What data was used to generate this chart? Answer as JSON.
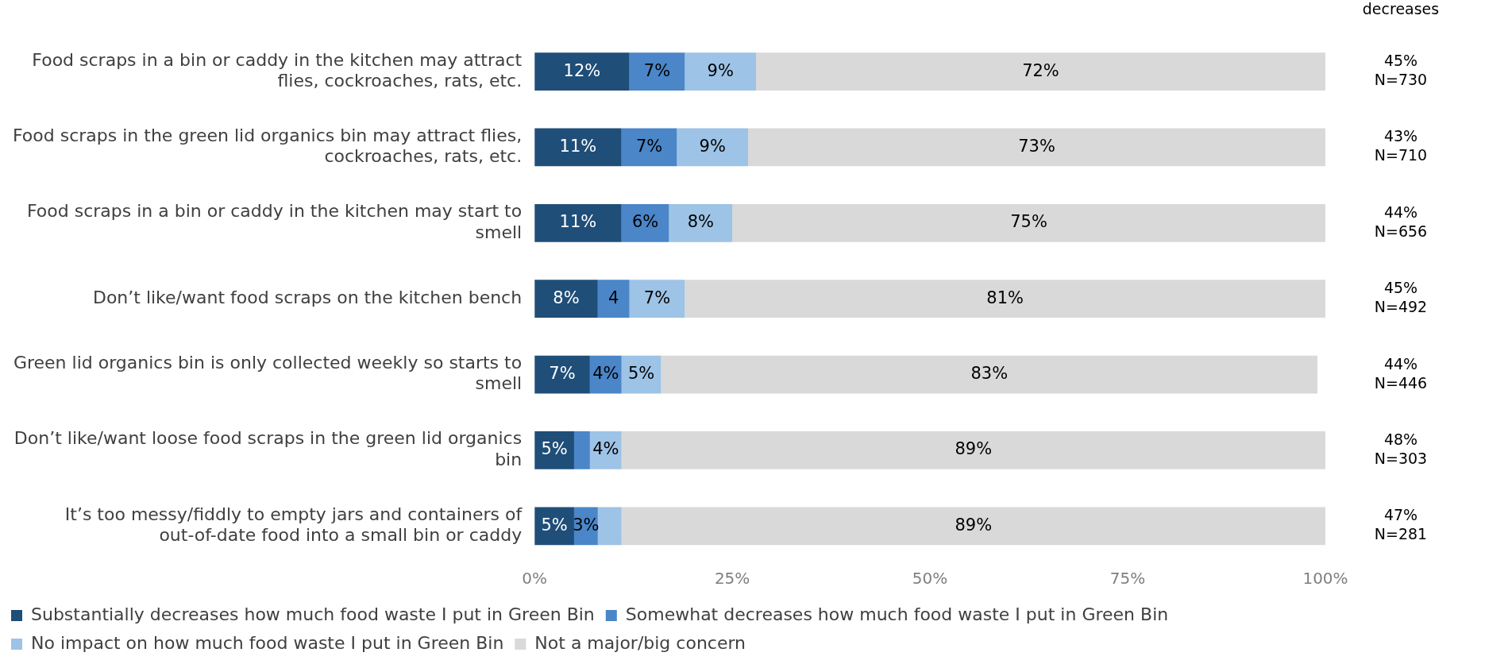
{
  "chart_data": {
    "type": "bar",
    "orientation": "horizontal",
    "stacked": true,
    "categories": [
      "Food scraps in a bin or caddy in the kitchen may attract flies, cockroaches, rats, etc.",
      "Food scraps in the green lid organics bin may attract flies, cockroaches, rats, etc.",
      "Food scraps in a bin or caddy in the kitchen may start to smell",
      "Don’t like/want food scraps on the kitchen bench",
      "Green lid organics bin is only collected weekly so starts to smell",
      "Don’t like/want loose food scraps in the green lid organics bin",
      "It’s too messy/fiddly to empty jars and containers of out-of-date food into a small bin or caddy"
    ],
    "series": [
      {
        "name": "Substantially decreases how much food waste I put in Green Bin",
        "color": "#1f4e79",
        "values": [
          12,
          11,
          11,
          8,
          7,
          5,
          5
        ],
        "value_labels": [
          "12%",
          "11%",
          "11%",
          "8%",
          "7%",
          "5%",
          "5%"
        ]
      },
      {
        "name": "Somewhat decreases how much food waste I put in Green Bin",
        "color": "#4a86c8",
        "values": [
          7,
          7,
          6,
          4,
          4,
          2,
          3
        ],
        "value_labels": [
          "7%",
          "7%",
          "6%",
          "4",
          "4%",
          null,
          "3%"
        ]
      },
      {
        "name": "No impact on how much food waste I put in Green Bin",
        "color": "#9dc3e6",
        "values": [
          9,
          9,
          8,
          7,
          5,
          4,
          3
        ],
        "value_labels": [
          "9%",
          "9%",
          "8%",
          "7%",
          "5%",
          "4%",
          null
        ]
      },
      {
        "name": "Not a major/big concern",
        "color": "#d9d9d9",
        "values": [
          72,
          73,
          75,
          81,
          83,
          89,
          89
        ],
        "value_labels": [
          "72%",
          "73%",
          "75%",
          "81%",
          "83%",
          "89%",
          "89%"
        ]
      }
    ],
    "xlim": [
      0,
      100
    ],
    "xticks": [
      {
        "value": 0,
        "label": "0%"
      },
      {
        "value": 25,
        "label": "25%"
      },
      {
        "value": 50,
        "label": "50%"
      },
      {
        "value": 75,
        "label": "75%"
      },
      {
        "value": 100,
        "label": "100%"
      }
    ],
    "grid": false,
    "legend": "bottom",
    "annotations": [
      "decreases",
      "45%\nN=730",
      "43%\nN=710",
      "44%\nN=656",
      "45%\nN=492",
      "44%\nN=446",
      "48%\nN=303",
      "47%\nN=281"
    ]
  }
}
